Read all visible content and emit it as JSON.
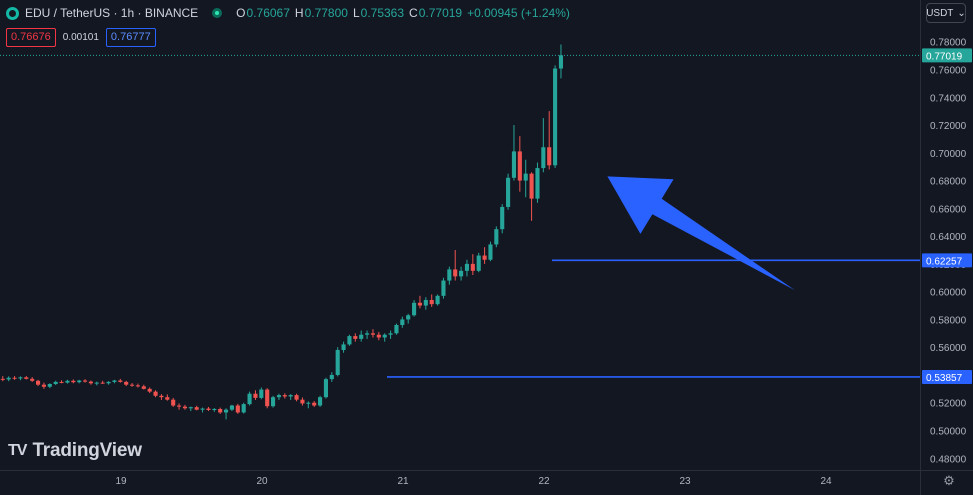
{
  "header": {
    "symbol": "EDU / TetherUS · 1h · BINANCE",
    "open_label": "O",
    "open": "0.76067",
    "high_label": "H",
    "high": "0.77800",
    "low_label": "L",
    "low": "0.75363",
    "close_label": "C",
    "close": "0.77019",
    "change": "+0.00945 (+1.24%)"
  },
  "quote": {
    "bid": "0.76676",
    "spread": "0.00101",
    "ask": "0.76777"
  },
  "currency_button": {
    "label": "USDT",
    "icon": "chevron-down-icon"
  },
  "brand": {
    "logo_text": "TV",
    "name": "TradingView"
  },
  "settings_icon": "gear-icon",
  "colors": {
    "background": "#131722",
    "up": "#26a69a",
    "down": "#ef5350",
    "hline": "#2962ff",
    "arrow": "#2962ff",
    "price_tag": "#26a69a"
  },
  "chart_data": {
    "type": "candlestick",
    "title": "",
    "xlabel": "",
    "ylabel": "",
    "ylim": [
      0.473,
      0.787
    ],
    "x_ticks": [
      "19",
      "20",
      "21",
      "22",
      "23",
      "24"
    ],
    "y_ticks": [
      "0.48000",
      "0.50000",
      "0.52000",
      "0.54000",
      "0.56000",
      "0.58000",
      "0.60000",
      "0.62000",
      "0.64000",
      "0.66000",
      "0.68000",
      "0.70000",
      "0.72000",
      "0.74000",
      "0.76000",
      "0.78000"
    ],
    "last_price": "0.77019",
    "horizontal_lines": [
      {
        "label": "0.62257",
        "value": 0.62257
      },
      {
        "label": "0.53857",
        "value": 0.53857
      }
    ],
    "annotation": {
      "type": "arrow",
      "from": [
        23.78,
        0.601
      ],
      "to": [
        22.45,
        0.683
      ]
    },
    "start": 18.12,
    "step": 0.04167,
    "candles": [
      [
        0.536,
        0.5385,
        0.535,
        0.5372
      ],
      [
        0.5372,
        0.5392,
        0.5355,
        0.5368
      ],
      [
        0.5368,
        0.539,
        0.5355,
        0.538
      ],
      [
        0.538,
        0.5392,
        0.5365,
        0.5375
      ],
      [
        0.5375,
        0.539,
        0.5362,
        0.5383
      ],
      [
        0.5383,
        0.5392,
        0.5368,
        0.5372
      ],
      [
        0.5372,
        0.5385,
        0.535,
        0.5358
      ],
      [
        0.5358,
        0.5365,
        0.532,
        0.533
      ],
      [
        0.533,
        0.5345,
        0.53,
        0.5315
      ],
      [
        0.5315,
        0.534,
        0.5305,
        0.5335
      ],
      [
        0.5335,
        0.5358,
        0.5328,
        0.535
      ],
      [
        0.535,
        0.5362,
        0.534,
        0.5345
      ],
      [
        0.5345,
        0.5365,
        0.5338,
        0.5358
      ],
      [
        0.5358,
        0.5368,
        0.534,
        0.5348
      ],
      [
        0.5348,
        0.5365,
        0.534,
        0.536
      ],
      [
        0.536,
        0.537,
        0.5345,
        0.5352
      ],
      [
        0.5352,
        0.536,
        0.533,
        0.534
      ],
      [
        0.534,
        0.5352,
        0.5325,
        0.5345
      ],
      [
        0.5345,
        0.5358,
        0.5335,
        0.534
      ],
      [
        0.534,
        0.5355,
        0.533,
        0.535
      ],
      [
        0.535,
        0.5365,
        0.534,
        0.536
      ],
      [
        0.536,
        0.5372,
        0.5345,
        0.535
      ],
      [
        0.535,
        0.5358,
        0.532,
        0.533
      ],
      [
        0.533,
        0.5342,
        0.5315,
        0.5325
      ],
      [
        0.5325,
        0.5338,
        0.531,
        0.5318
      ],
      [
        0.5318,
        0.533,
        0.5295,
        0.53
      ],
      [
        0.53,
        0.531,
        0.527,
        0.528
      ],
      [
        0.528,
        0.529,
        0.524,
        0.525
      ],
      [
        0.525,
        0.5262,
        0.522,
        0.524
      ],
      [
        0.524,
        0.526,
        0.5215,
        0.5222
      ],
      [
        0.5222,
        0.5235,
        0.517,
        0.518
      ],
      [
        0.518,
        0.5195,
        0.515,
        0.5172
      ],
      [
        0.5172,
        0.5185,
        0.515,
        0.516
      ],
      [
        0.516,
        0.5172,
        0.514,
        0.5168
      ],
      [
        0.5168,
        0.5178,
        0.5145,
        0.515
      ],
      [
        0.515,
        0.5165,
        0.513,
        0.5158
      ],
      [
        0.5158,
        0.517,
        0.514,
        0.5148
      ],
      [
        0.5148,
        0.5162,
        0.5135,
        0.5155
      ],
      [
        0.5155,
        0.5165,
        0.512,
        0.513
      ],
      [
        0.513,
        0.516,
        0.508,
        0.515
      ],
      [
        0.515,
        0.5185,
        0.514,
        0.518
      ],
      [
        0.518,
        0.5192,
        0.512,
        0.513
      ],
      [
        0.513,
        0.52,
        0.5122,
        0.519
      ],
      [
        0.519,
        0.528,
        0.518,
        0.5265
      ],
      [
        0.5265,
        0.529,
        0.522,
        0.5235
      ],
      [
        0.5235,
        0.531,
        0.5225,
        0.5295
      ],
      [
        0.5295,
        0.5305,
        0.516,
        0.5175
      ],
      [
        0.5175,
        0.525,
        0.5165,
        0.524
      ],
      [
        0.524,
        0.5265,
        0.522,
        0.5255
      ],
      [
        0.5255,
        0.5268,
        0.523,
        0.5245
      ],
      [
        0.5245,
        0.5262,
        0.522,
        0.5255
      ],
      [
        0.5255,
        0.5265,
        0.521,
        0.5222
      ],
      [
        0.5222,
        0.5238,
        0.518,
        0.5195
      ],
      [
        0.5195,
        0.521,
        0.516,
        0.52
      ],
      [
        0.52,
        0.5212,
        0.517,
        0.518
      ],
      [
        0.518,
        0.525,
        0.517,
        0.524
      ],
      [
        0.524,
        0.538,
        0.523,
        0.537
      ],
      [
        0.537,
        0.542,
        0.535,
        0.54
      ],
      [
        0.54,
        0.56,
        0.539,
        0.558
      ],
      [
        0.558,
        0.564,
        0.556,
        0.562
      ],
      [
        0.562,
        0.569,
        0.561,
        0.568
      ],
      [
        0.568,
        0.57,
        0.564,
        0.566
      ],
      [
        0.566,
        0.572,
        0.564,
        0.569
      ],
      [
        0.569,
        0.572,
        0.566,
        0.57
      ],
      [
        0.57,
        0.573,
        0.567,
        0.569
      ],
      [
        0.569,
        0.571,
        0.565,
        0.567
      ],
      [
        0.567,
        0.57,
        0.564,
        0.569
      ],
      [
        0.569,
        0.572,
        0.566,
        0.57
      ],
      [
        0.57,
        0.577,
        0.569,
        0.576
      ],
      [
        0.576,
        0.582,
        0.574,
        0.58
      ],
      [
        0.58,
        0.584,
        0.577,
        0.583
      ],
      [
        0.583,
        0.594,
        0.582,
        0.592
      ],
      [
        0.592,
        0.597,
        0.588,
        0.59
      ],
      [
        0.59,
        0.596,
        0.587,
        0.594
      ],
      [
        0.594,
        0.598,
        0.589,
        0.591
      ],
      [
        0.591,
        0.598,
        0.59,
        0.597
      ],
      [
        0.597,
        0.61,
        0.595,
        0.608
      ],
      [
        0.608,
        0.618,
        0.605,
        0.616
      ],
      [
        0.616,
        0.63,
        0.608,
        0.611
      ],
      [
        0.611,
        0.618,
        0.608,
        0.615
      ],
      [
        0.615,
        0.623,
        0.611,
        0.62
      ],
      [
        0.62,
        0.627,
        0.612,
        0.615
      ],
      [
        0.615,
        0.628,
        0.614,
        0.626
      ],
      [
        0.626,
        0.632,
        0.62,
        0.623
      ],
      [
        0.623,
        0.636,
        0.622,
        0.634
      ],
      [
        0.634,
        0.647,
        0.632,
        0.645
      ],
      [
        0.645,
        0.663,
        0.642,
        0.661
      ],
      [
        0.661,
        0.685,
        0.659,
        0.682
      ],
      [
        0.682,
        0.72,
        0.68,
        0.701
      ],
      [
        0.701,
        0.712,
        0.672,
        0.68
      ],
      [
        0.68,
        0.695,
        0.668,
        0.685
      ],
      [
        0.685,
        0.686,
        0.651,
        0.667
      ],
      [
        0.667,
        0.693,
        0.664,
        0.689
      ],
      [
        0.689,
        0.725,
        0.686,
        0.704
      ],
      [
        0.704,
        0.73,
        0.688,
        0.691
      ],
      [
        0.691,
        0.763,
        0.689,
        0.7607
      ],
      [
        0.7607,
        0.778,
        0.7536,
        0.7702
      ]
    ]
  }
}
